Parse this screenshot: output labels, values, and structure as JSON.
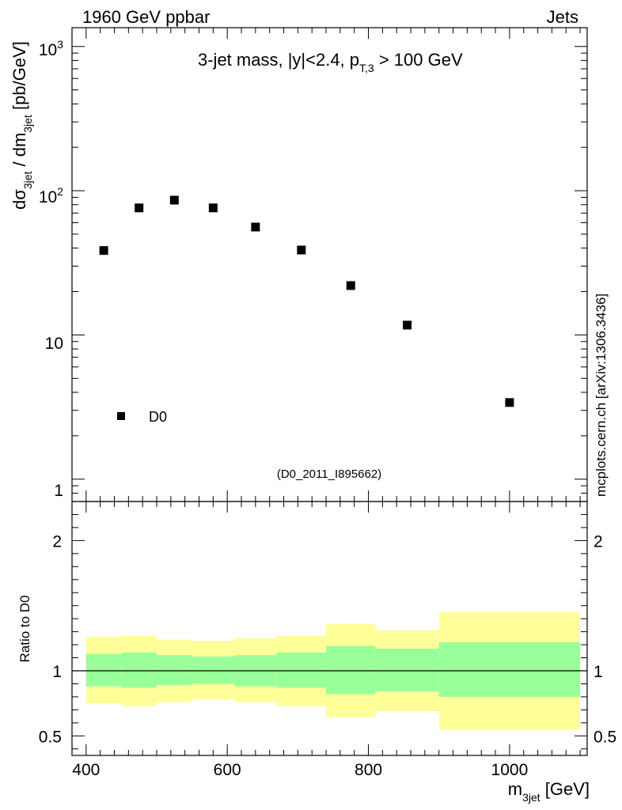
{
  "header": {
    "left": "1960 GeV ppbar",
    "right": "Jets"
  },
  "side_label": "mcplots.cern.ch [arXiv:1306.3436]",
  "colors": {
    "inner_band": "#99ff99",
    "outer_band": "#ffff99",
    "marker": "#000000",
    "analysis_tag": "#808080"
  },
  "chart_data": [
    {
      "type": "scatter",
      "title_main": "3-jet mass, |y|<2.4, p",
      "title_sub": "T,3",
      "title_tail": " > 100 GeV",
      "ylabel_main": "dσ",
      "ylabel_sub1": "3jet",
      "ylabel_mid": " / dm",
      "ylabel_sub2": "3jet",
      "ylabel_tail": " [pb/GeV]",
      "yscale": "log",
      "ylim": [
        0.7,
        1350
      ],
      "xlim": [
        380,
        1110
      ],
      "ytick_labels": {
        "e0": "1",
        "e1": "10",
        "e2base": "10",
        "e2exp": "2",
        "e3base": "10",
        "e3exp": "3"
      },
      "legend": {
        "label": "D0",
        "position": "bottom-left"
      },
      "analysis_tag": "(D0_2011_I895662)",
      "series": [
        {
          "name": "D0",
          "x": [
            425,
            475,
            525,
            580,
            640,
            705,
            775,
            855,
            1000
          ],
          "y": [
            38.5,
            76,
            86,
            76,
            56,
            38.8,
            22,
            11.7,
            3.4
          ]
        }
      ]
    },
    {
      "type": "area",
      "ylabel": "Ratio to D0",
      "xlabel_main": "m",
      "xlabel_sub": "3jet",
      "xlabel_tail": " [GeV]",
      "ylim": [
        0.35,
        2.3
      ],
      "xlim": [
        380,
        1110
      ],
      "ytick_labels": [
        "0.5",
        "1",
        "2"
      ],
      "ytick_values": [
        0.5,
        1,
        2
      ],
      "xtick_labels": [
        "400",
        "600",
        "800",
        "1000"
      ],
      "xtick_values": [
        400,
        600,
        800,
        1000
      ],
      "reference_line": 1,
      "bins": [
        {
          "lo": 400,
          "hi": 450,
          "outer": [
            0.75,
            1.26
          ],
          "inner": [
            0.88,
            1.13
          ]
        },
        {
          "lo": 450,
          "hi": 500,
          "outer": [
            0.73,
            1.27
          ],
          "inner": [
            0.87,
            1.14
          ]
        },
        {
          "lo": 500,
          "hi": 550,
          "outer": [
            0.76,
            1.24
          ],
          "inner": [
            0.89,
            1.12
          ]
        },
        {
          "lo": 550,
          "hi": 610,
          "outer": [
            0.78,
            1.23
          ],
          "inner": [
            0.9,
            1.11
          ]
        },
        {
          "lo": 610,
          "hi": 670,
          "outer": [
            0.76,
            1.25
          ],
          "inner": [
            0.88,
            1.12
          ]
        },
        {
          "lo": 670,
          "hi": 740,
          "outer": [
            0.73,
            1.27
          ],
          "inner": [
            0.87,
            1.14
          ]
        },
        {
          "lo": 740,
          "hi": 810,
          "outer": [
            0.64,
            1.36
          ],
          "inner": [
            0.82,
            1.19
          ]
        },
        {
          "lo": 810,
          "hi": 900,
          "outer": [
            0.69,
            1.31
          ],
          "inner": [
            0.84,
            1.17
          ]
        },
        {
          "lo": 900,
          "hi": 1100,
          "outer": [
            0.55,
            1.45
          ],
          "inner": [
            0.8,
            1.22
          ]
        }
      ]
    }
  ]
}
